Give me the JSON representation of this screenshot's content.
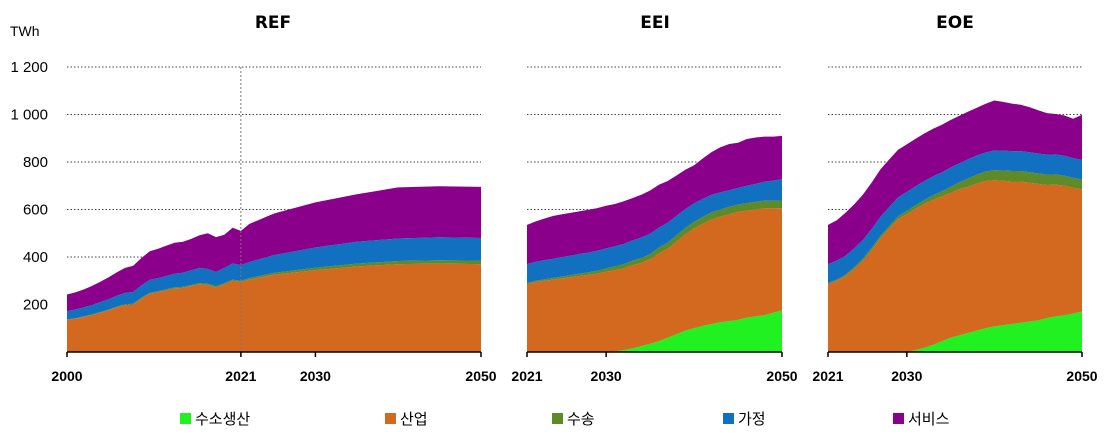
{
  "chart_data": {
    "type": "area",
    "unit_label": "TWh",
    "ylim": [
      0,
      1200
    ],
    "y_ticks": [
      {
        "v": 200,
        "label": "200"
      },
      {
        "v": 400,
        "label": "400"
      },
      {
        "v": 600,
        "label": "600"
      },
      {
        "v": 800,
        "label": "800"
      },
      {
        "v": 1000,
        "label": "1 000"
      },
      {
        "v": 1200,
        "label": "1 200"
      }
    ],
    "series_meta": [
      {
        "key": "h2",
        "name": "수소생산",
        "color": "#21F021"
      },
      {
        "key": "ind",
        "name": "산업",
        "color": "#D2691E"
      },
      {
        "key": "trn",
        "name": "수송",
        "color": "#5E8A28"
      },
      {
        "key": "res",
        "name": "가정",
        "color": "#1170C0"
      },
      {
        "key": "svc",
        "name": "서비스",
        "color": "#8B008B"
      }
    ],
    "panels": [
      {
        "title": "REF",
        "x": [
          2000,
          2001,
          2002,
          2003,
          2004,
          2005,
          2006,
          2007,
          2008,
          2009,
          2010,
          2011,
          2012,
          2013,
          2014,
          2015,
          2016,
          2017,
          2018,
          2019,
          2020,
          2021,
          2022,
          2025,
          2030,
          2035,
          2040,
          2045,
          2050
        ],
        "x_ticks": [
          2000,
          2021,
          2030,
          2050
        ],
        "marker_year": 2021,
        "series": {
          "h2": [
            0,
            0,
            0,
            0,
            0,
            0,
            0,
            0,
            0,
            0,
            0,
            0,
            0,
            0,
            0,
            0,
            0,
            0,
            0,
            0,
            0,
            0,
            0,
            0,
            0,
            0,
            0,
            0,
            0
          ],
          "ind": [
            135,
            140,
            148,
            155,
            165,
            175,
            188,
            198,
            200,
            225,
            245,
            252,
            260,
            268,
            270,
            278,
            285,
            282,
            272,
            285,
            300,
            295,
            305,
            325,
            345,
            360,
            370,
            372,
            370
          ],
          "trn": [
            2,
            2,
            2,
            3,
            3,
            3,
            3,
            3,
            3,
            4,
            4,
            4,
            4,
            4,
            4,
            4,
            5,
            5,
            5,
            5,
            5,
            5,
            6,
            8,
            10,
            12,
            13,
            14,
            15
          ],
          "res": [
            35,
            37,
            38,
            40,
            42,
            44,
            46,
            48,
            50,
            52,
            55,
            55,
            56,
            58,
            60,
            62,
            64,
            63,
            60,
            64,
            68,
            66,
            68,
            75,
            85,
            92,
            95,
            97,
            95
          ],
          "svc": [
            70,
            72,
            75,
            80,
            85,
            92,
            98,
            105,
            110,
            115,
            120,
            124,
            128,
            130,
            130,
            132,
            138,
            150,
            147,
            140,
            150,
            144,
            160,
            175,
            190,
            200,
            215,
            215,
            215
          ]
        }
      },
      {
        "title": "EEI",
        "x": [
          2021,
          2022,
          2023,
          2024,
          2025,
          2026,
          2027,
          2028,
          2029,
          2030,
          2031,
          2032,
          2033,
          2034,
          2035,
          2036,
          2037,
          2038,
          2039,
          2040,
          2041,
          2042,
          2043,
          2044,
          2045,
          2046,
          2047,
          2048,
          2049,
          2050
        ],
        "x_ticks": [
          2021,
          2030,
          2050
        ],
        "series": {
          "h2": [
            0,
            0,
            0,
            0,
            0,
            0,
            0,
            0,
            0,
            0,
            3,
            8,
            15,
            25,
            35,
            45,
            60,
            75,
            90,
            100,
            110,
            118,
            125,
            130,
            135,
            145,
            150,
            155,
            165,
            175
          ],
          "ind": [
            285,
            295,
            300,
            305,
            310,
            315,
            320,
            325,
            330,
            338,
            342,
            345,
            350,
            350,
            355,
            370,
            375,
            390,
            405,
            420,
            430,
            440,
            445,
            450,
            455,
            450,
            450,
            450,
            440,
            430
          ],
          "trn": [
            5,
            5,
            6,
            7,
            8,
            9,
            10,
            11,
            12,
            14,
            15,
            17,
            19,
            21,
            22,
            25,
            25,
            26,
            27,
            28,
            29,
            30,
            30,
            31,
            31,
            32,
            32,
            32,
            32,
            33
          ],
          "res": [
            80,
            80,
            81,
            81,
            82,
            82,
            83,
            83,
            84,
            84,
            85,
            85,
            86,
            86,
            86,
            84,
            85,
            82,
            80,
            78,
            76,
            74,
            72,
            70,
            70,
            73,
            76,
            80,
            85,
            90
          ],
          "svc": [
            165,
            170,
            175,
            180,
            180,
            180,
            180,
            180,
            180,
            180,
            178,
            180,
            178,
            180,
            182,
            180,
            175,
            170,
            165,
            160,
            170,
            180,
            190,
            195,
            190,
            197,
            195,
            190,
            185,
            182
          ]
        }
      },
      {
        "title": "EOE",
        "x": [
          2021,
          2022,
          2023,
          2024,
          2025,
          2026,
          2027,
          2028,
          2029,
          2030,
          2031,
          2032,
          2033,
          2034,
          2035,
          2036,
          2037,
          2038,
          2039,
          2040,
          2041,
          2042,
          2043,
          2044,
          2045,
          2046,
          2047,
          2048,
          2049,
          2050
        ],
        "x_ticks": [
          2021,
          2030,
          2050
        ],
        "series": {
          "h2": [
            0,
            0,
            0,
            0,
            0,
            0,
            0,
            0,
            0,
            0,
            8,
            18,
            30,
            45,
            60,
            70,
            80,
            90,
            100,
            108,
            113,
            118,
            123,
            128,
            133,
            143,
            150,
            155,
            162,
            170
          ],
          "ind": [
            285,
            300,
            320,
            350,
            385,
            430,
            480,
            520,
            560,
            580,
            595,
            605,
            610,
            610,
            610,
            615,
            615,
            620,
            620,
            615,
            608,
            600,
            595,
            585,
            575,
            560,
            555,
            545,
            530,
            515
          ],
          "trn": [
            5,
            5,
            6,
            7,
            8,
            9,
            10,
            11,
            12,
            14,
            15,
            17,
            20,
            22,
            25,
            30,
            35,
            38,
            40,
            42,
            43,
            44,
            44,
            44,
            44,
            44,
            43,
            42,
            41,
            40
          ],
          "res": [
            80,
            80,
            80,
            80,
            80,
            80,
            80,
            80,
            80,
            80,
            80,
            80,
            80,
            80,
            82,
            80,
            82,
            80,
            80,
            84,
            84,
            84,
            84,
            84,
            84,
            84,
            84,
            84,
            84,
            84
          ],
          "svc": [
            165,
            170,
            180,
            185,
            190,
            195,
            200,
            200,
            200,
            200,
            200,
            200,
            200,
            200,
            200,
            200,
            200,
            200,
            205,
            210,
            205,
            200,
            195,
            190,
            182,
            175,
            170,
            170,
            165,
            190
          ]
        }
      }
    ]
  }
}
